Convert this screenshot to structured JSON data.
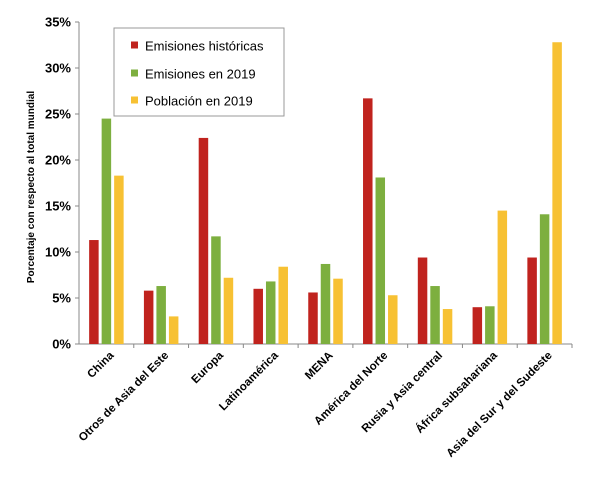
{
  "chart_data": {
    "type": "bar",
    "ylabel": "Porcentaje con respecto al total mundial",
    "ylim": [
      0,
      35
    ],
    "yticks": [
      0,
      5,
      10,
      15,
      20,
      25,
      30,
      35
    ],
    "ytick_labels": [
      "0%",
      "5%",
      "10%",
      "15%",
      "20%",
      "25%",
      "30%",
      "35%"
    ],
    "categories": [
      "China",
      "Otros de Asia del Este",
      "Europa",
      "Latinoamérica",
      "MENA",
      "América del Norte",
      "Rusia y Asia central",
      "África subsahariana",
      "Asia del Sur y del Sudeste"
    ],
    "series": [
      {
        "name": "Emisiones históricas",
        "color": "#c0231e",
        "values": [
          11.3,
          5.8,
          22.4,
          6.0,
          5.6,
          26.7,
          9.4,
          4.0,
          9.4
        ]
      },
      {
        "name": "Emisiones en 2019",
        "color": "#7daf3f",
        "values": [
          24.5,
          6.3,
          11.7,
          6.8,
          8.7,
          18.1,
          6.3,
          4.1,
          14.1
        ]
      },
      {
        "name": "Población en 2019",
        "color": "#f7c133",
        "values": [
          18.3,
          3.0,
          7.2,
          8.4,
          7.1,
          5.3,
          3.8,
          14.5,
          32.8
        ]
      }
    ],
    "grid": false,
    "legend_position": "top-left"
  }
}
